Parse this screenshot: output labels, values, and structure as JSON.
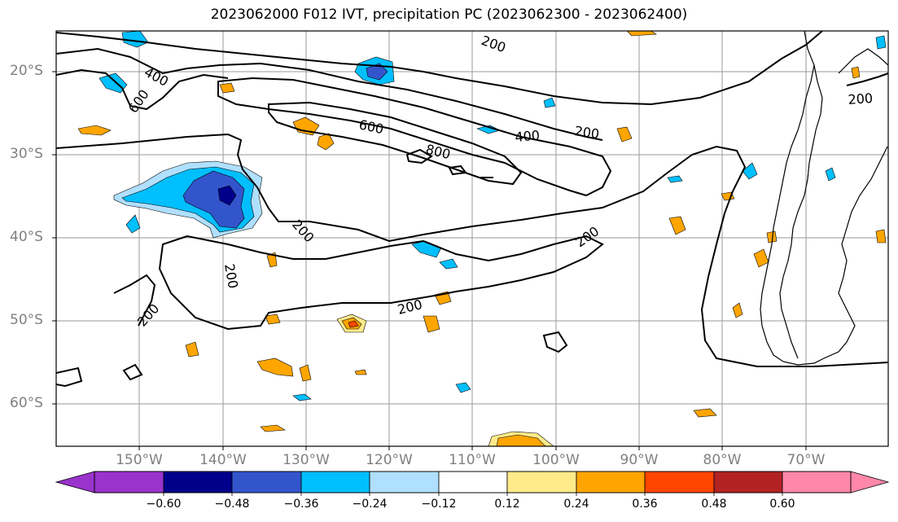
{
  "title": "2023062000 F012 IVT, precipitation PC (2023062300 - 2023062400)",
  "map": {
    "lat_labels": [
      "20°S",
      "30°S",
      "40°S",
      "50°S",
      "60°S"
    ],
    "lon_labels": [
      "150°W",
      "140°W",
      "130°W",
      "120°W",
      "110°W",
      "100°W",
      "90°W",
      "80°W",
      "70°W"
    ],
    "ivt_contour_labels": [
      "400",
      "600",
      "600",
      "800",
      "400",
      "200",
      "200",
      "200",
      "200",
      "200",
      "200",
      "200",
      "200"
    ],
    "gridline_color": "#9a9a9a",
    "contour_color": "#000000"
  },
  "colorbar": {
    "tick_labels": [
      "−0.60",
      "−0.48",
      "−0.36",
      "−0.24",
      "−0.12",
      "0.12",
      "0.24",
      "0.36",
      "0.48",
      "0.60"
    ],
    "colors": [
      "#9933cc",
      "#00008b",
      "#3355cc",
      "#00bfff",
      "#b0e0ff",
      "#ffffff",
      "#ffeb8a",
      "#ffa500",
      "#ff4500",
      "#b22222",
      "#ff88aa"
    ]
  }
}
